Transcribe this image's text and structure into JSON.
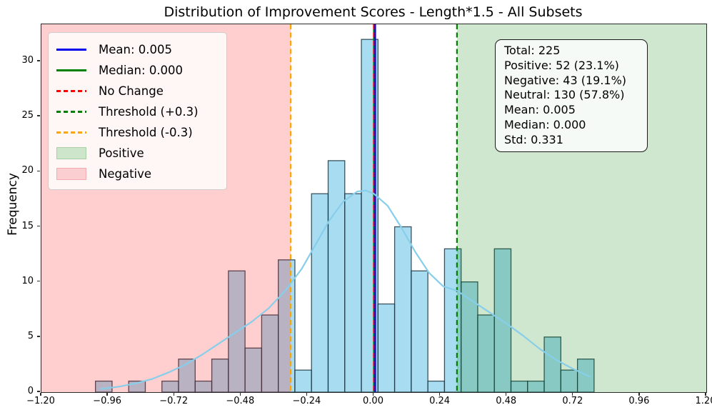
{
  "title": "Distribution of Improvement Scores - Length*1.5 - All Subsets",
  "ylabel": "Frequency",
  "stats_box": {
    "lines": [
      "Total: 225",
      "Positive: 52 (23.1%)",
      "Negative: 43 (19.1%)",
      "Neutral: 130 (57.8%)",
      "Mean: 0.005",
      "Median: 0.000",
      "Std: 0.331"
    ]
  },
  "legend": {
    "items": [
      {
        "label": "Mean: 0.005",
        "swatch": "solid",
        "color": "#0000ee"
      },
      {
        "label": "Median: 0.000",
        "swatch": "solid",
        "color": "#008000"
      },
      {
        "label": "No Change",
        "swatch": "dashed",
        "color": "#ff0000"
      },
      {
        "label": "Threshold (+0.3)",
        "swatch": "dashed",
        "color": "#008000"
      },
      {
        "label": "Threshold (-0.3)",
        "swatch": "dashed",
        "color": "#ffa500"
      },
      {
        "label": "Positive",
        "swatch": "patch",
        "color": "#cde6cb",
        "border": "#a8cfa5"
      },
      {
        "label": "Negative",
        "swatch": "patch",
        "color": "#fbced2",
        "border": "#f2abb0"
      }
    ]
  },
  "chart_data": {
    "type": "bar",
    "subtype": "histogram-with-kde",
    "title": "Distribution of Improvement Scores - Length*1.5 - All Subsets",
    "xlabel": "",
    "ylabel": "Frequency",
    "xlim": [
      -1.2,
      1.2
    ],
    "ylim": [
      0,
      33.37
    ],
    "grid": false,
    "legend_position": "upper left",
    "stats_position": "upper right",
    "bin_start": -1.005,
    "bin_width": 0.06,
    "bin_counts": [
      1,
      0,
      1,
      0,
      1,
      3,
      1,
      3,
      11,
      4,
      7,
      12,
      2,
      18,
      21,
      18,
      32,
      8,
      15,
      11,
      1,
      13,
      10,
      7,
      13,
      1,
      1,
      5,
      2,
      3
    ],
    "total_count": 225,
    "bar_fill": "rgba(135,206,235,0.72)",
    "bar_edge": "rgba(20,45,56,0.8)",
    "kde_color": "#87ceeb",
    "kde": [
      [
        -0.985,
        0.3
      ],
      [
        -0.92,
        0.5
      ],
      [
        -0.86,
        0.8
      ],
      [
        -0.8,
        1.2
      ],
      [
        -0.74,
        1.8
      ],
      [
        -0.68,
        2.5
      ],
      [
        -0.62,
        3.4
      ],
      [
        -0.56,
        4.4
      ],
      [
        -0.5,
        5.4
      ],
      [
        -0.44,
        6.4
      ],
      [
        -0.38,
        7.6
      ],
      [
        -0.32,
        9.2
      ],
      [
        -0.26,
        11.2
      ],
      [
        -0.21,
        13.4
      ],
      [
        -0.16,
        15.6
      ],
      [
        -0.11,
        17.3
      ],
      [
        -0.06,
        18.2
      ],
      [
        -0.03,
        18.3
      ],
      [
        0.0,
        18.0
      ],
      [
        0.05,
        16.9
      ],
      [
        0.1,
        14.9
      ],
      [
        0.15,
        12.7
      ],
      [
        0.2,
        10.8
      ],
      [
        0.25,
        9.6
      ],
      [
        0.3,
        9.2
      ],
      [
        0.36,
        8.2
      ],
      [
        0.42,
        7.2
      ],
      [
        0.48,
        6.2
      ],
      [
        0.54,
        5.1
      ],
      [
        0.6,
        3.9
      ],
      [
        0.66,
        2.9
      ],
      [
        0.72,
        2.1
      ],
      [
        0.78,
        1.4
      ]
    ],
    "vlines": [
      {
        "name": "median-line",
        "x": 0.0,
        "color": "#008000",
        "style": "solid"
      },
      {
        "name": "no-change-line",
        "x": 0.0,
        "color": "#ff0000",
        "style": "dashed"
      },
      {
        "name": "mean-line",
        "x": 0.005,
        "color": "#0000ee",
        "style": "solid"
      },
      {
        "name": "threshold-positive-line",
        "x": 0.3,
        "color": "#008000",
        "style": "dashed"
      },
      {
        "name": "threshold-negative-line",
        "x": -0.3,
        "color": "#ffa500",
        "style": "dashed"
      }
    ],
    "regions": [
      {
        "name": "negative-region",
        "x0": -1.2,
        "x1": -0.3,
        "color": "rgba(255,0,0,0.19)"
      },
      {
        "name": "positive-region",
        "x0": 0.3,
        "x1": 1.2,
        "color": "rgba(0,128,0,0.19)"
      }
    ],
    "x_ticks": [
      {
        "v": -1.2,
        "label": "−1.20"
      },
      {
        "v": -0.96,
        "label": "−0.96"
      },
      {
        "v": -0.72,
        "label": "−0.72"
      },
      {
        "v": -0.48,
        "label": "−0.48"
      },
      {
        "v": -0.24,
        "label": "−0.24"
      },
      {
        "v": 0.0,
        "label": "0.00"
      },
      {
        "v": 0.24,
        "label": "0.24"
      },
      {
        "v": 0.48,
        "label": "0.48"
      },
      {
        "v": 0.72,
        "label": "0.72"
      },
      {
        "v": 0.96,
        "label": "0.96"
      },
      {
        "v": 1.2,
        "label": "1.20"
      }
    ],
    "y_ticks": [
      0,
      5,
      10,
      15,
      20,
      25,
      30
    ]
  }
}
